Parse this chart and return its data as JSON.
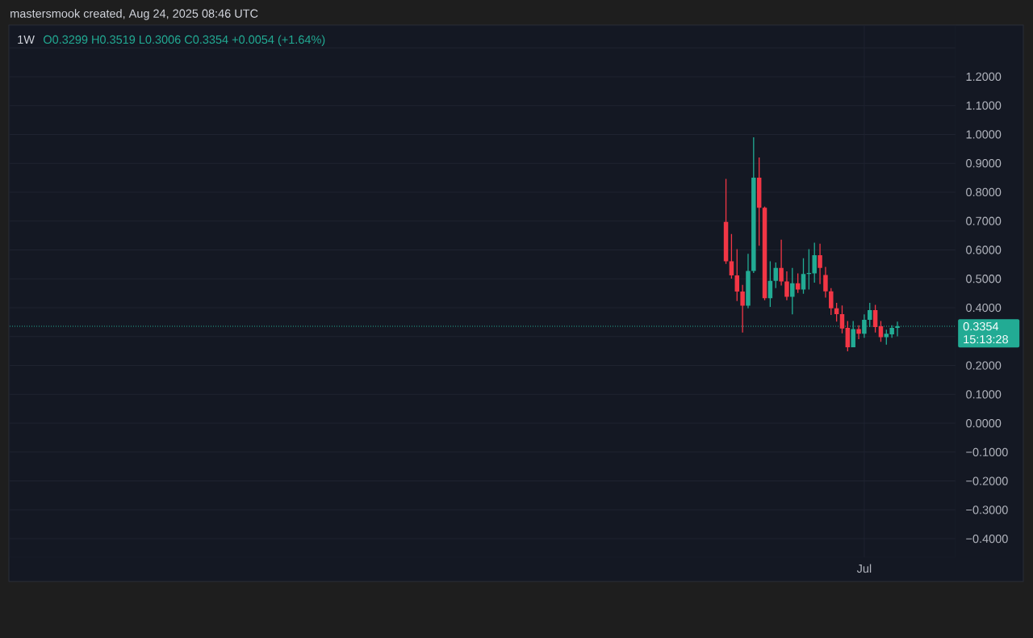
{
  "chart_data": {
    "type": "candlestick",
    "title": "1W",
    "subtitle": "O0.3299 H0.3519 L0.3006 C0.3354 +0.0054 (+1.64%)",
    "annotations": [
      "mastersmook created, Aug 24, 2025 08:46 UTC",
      "15:13:28"
    ],
    "categories": [
      null,
      null,
      null,
      null,
      null,
      null,
      null,
      null,
      null,
      null,
      null,
      null,
      null,
      null,
      null,
      null,
      null,
      null,
      null,
      null,
      null,
      null,
      null,
      null,
      null,
      null,
      null,
      null,
      null,
      null,
      null,
      null,
      null,
      null,
      null,
      null,
      null,
      null,
      null,
      null,
      null,
      null,
      null,
      null,
      null,
      null,
      null,
      null,
      null,
      null,
      null,
      null,
      null,
      null,
      null,
      null,
      null,
      null,
      null,
      null,
      null,
      null,
      null,
      null,
      null,
      null,
      null,
      null,
      null,
      null,
      null,
      null,
      null,
      null,
      null,
      null,
      null,
      null,
      null,
      null,
      null,
      null,
      null,
      null,
      null,
      null,
      null,
      null,
      null,
      null,
      null,
      null,
      null,
      null,
      null,
      null,
      null,
      null,
      null,
      null,
      null,
      null,
      null,
      null,
      null,
      null,
      null,
      null,
      null,
      null,
      null,
      null,
      null,
      null,
      null,
      null,
      null,
      null,
      null,
      null,
      null,
      null,
      null,
      null,
      null,
      null,
      null,
      null,
      null,
      null,
      null,
      null,
      null,
      null,
      null,
      null,
      null,
      null,
      null,
      null,
      null,
      null,
      null,
      null,
      null,
      null,
      null,
      null,
      null,
      null,
      null,
      null,
      null,
      null,
      "Jul",
      null,
      null,
      null,
      null,
      null,
      null,
      null,
      null,
      null,
      null,
      null,
      null,
      null,
      null,
      null,
      null
    ],
    "ohlc": [
      null,
      null,
      null,
      null,
      null,
      null,
      null,
      null,
      null,
      null,
      null,
      null,
      null,
      null,
      null,
      null,
      null,
      null,
      null,
      null,
      null,
      null,
      null,
      null,
      null,
      null,
      null,
      null,
      null,
      null,
      null,
      null,
      null,
      null,
      null,
      null,
      null,
      null,
      null,
      null,
      null,
      null,
      null,
      null,
      null,
      null,
      null,
      null,
      null,
      null,
      null,
      null,
      null,
      null,
      null,
      null,
      null,
      null,
      null,
      null,
      null,
      null,
      null,
      null,
      null,
      null,
      null,
      null,
      null,
      null,
      null,
      null,
      null,
      null,
      null,
      null,
      null,
      null,
      null,
      null,
      null,
      null,
      null,
      null,
      null,
      null,
      null,
      null,
      null,
      null,
      null,
      null,
      null,
      null,
      null,
      null,
      null,
      null,
      null,
      null,
      null,
      null,
      null,
      null,
      null,
      null,
      null,
      null,
      null,
      null,
      null,
      null,
      null,
      null,
      null,
      null,
      null,
      null,
      null,
      null,
      null,
      null,
      null,
      null,
      null,
      null,
      null,
      null,
      null,
      [
        0.697,
        0.846,
        0.552,
        0.561
      ],
      [
        0.561,
        0.655,
        0.501,
        0.512
      ],
      [
        0.512,
        0.603,
        0.423,
        0.456
      ],
      [
        0.456,
        0.479,
        0.314,
        0.407
      ],
      [
        0.407,
        0.587,
        0.398,
        0.527
      ],
      [
        0.527,
        0.99,
        0.52,
        0.85
      ],
      [
        0.85,
        0.92,
        0.615,
        0.746
      ],
      [
        0.746,
        0.75,
        0.426,
        0.433
      ],
      [
        0.433,
        0.561,
        0.403,
        0.493
      ],
      [
        0.493,
        0.557,
        0.468,
        0.538
      ],
      [
        0.538,
        0.636,
        0.477,
        0.491
      ],
      [
        0.491,
        0.526,
        0.426,
        0.438
      ],
      [
        0.438,
        0.538,
        0.377,
        0.485
      ],
      [
        0.485,
        0.519,
        0.451,
        0.463
      ],
      [
        0.463,
        0.571,
        0.448,
        0.517
      ],
      [
        0.517,
        0.603,
        0.463,
        0.52
      ],
      [
        0.519,
        0.625,
        0.487,
        0.582
      ],
      [
        0.582,
        0.622,
        0.482,
        0.538
      ],
      [
        0.513,
        0.541,
        0.435,
        0.457
      ],
      [
        0.457,
        0.468,
        0.375,
        0.398
      ],
      [
        0.398,
        0.417,
        0.352,
        0.378
      ],
      [
        0.378,
        0.408,
        0.311,
        0.328
      ],
      [
        0.33,
        0.354,
        0.249,
        0.263
      ],
      [
        0.263,
        0.354,
        0.263,
        0.326
      ],
      [
        0.326,
        0.339,
        0.291,
        0.31
      ],
      [
        0.31,
        0.377,
        0.296,
        0.358
      ],
      [
        0.358,
        0.417,
        0.333,
        0.392
      ],
      [
        0.392,
        0.41,
        0.314,
        0.333
      ],
      [
        0.336,
        0.354,
        0.282,
        0.298
      ],
      [
        0.298,
        0.324,
        0.272,
        0.31
      ],
      [
        0.308,
        0.339,
        0.296,
        0.33
      ],
      [
        0.3299,
        0.3519,
        0.3006,
        0.3354
      ],
      null,
      null,
      null,
      null,
      null,
      null,
      null,
      null,
      null,
      null
    ],
    "colors": [
      null,
      null,
      null,
      null,
      null,
      null,
      null,
      null,
      null,
      null,
      null,
      null,
      null,
      null,
      null,
      null,
      null,
      null,
      null,
      null,
      null,
      null,
      null,
      null,
      null,
      null,
      null,
      null,
      null,
      null,
      null,
      null,
      null,
      null,
      null,
      null,
      null,
      null,
      null,
      null,
      null,
      null,
      null,
      null,
      null,
      null,
      null,
      null,
      null,
      null,
      null,
      null,
      null,
      null,
      null,
      null,
      null,
      null,
      null,
      null,
      null,
      null,
      null,
      null,
      null,
      null,
      null,
      null,
      null,
      null,
      null,
      null,
      null,
      null,
      null,
      null,
      null,
      null,
      null,
      null,
      null,
      null,
      null,
      null,
      null,
      null,
      null,
      null,
      null,
      null,
      null,
      null,
      null,
      null,
      null,
      null,
      null,
      null,
      null,
      null,
      null,
      null,
      null,
      null,
      null,
      null,
      null,
      null,
      null,
      null,
      null,
      null,
      null,
      null,
      null,
      null,
      null,
      null,
      null,
      null,
      null,
      null,
      null,
      null,
      null,
      null,
      null,
      null,
      null,
      "#f23645",
      "#f23645",
      "#f23645",
      "#f23645",
      "#22ab94",
      "#22ab94",
      "#f23645",
      "#f23645",
      "#22ab94",
      "#22ab94",
      "#f23645",
      "#f23645",
      "#22ab94",
      "#f23645",
      "#22ab94",
      "#22ab94",
      "#22ab94",
      "#f23645",
      "#f23645",
      "#f23645",
      "#f23645",
      "#f23645",
      "#f23645",
      "#22ab94",
      "#f23645",
      "#22ab94",
      "#22ab94",
      "#f23645",
      "#f23645",
      "#22ab94",
      "#22ab94",
      "#22ab94",
      null,
      null,
      null,
      null,
      null,
      null,
      null,
      null,
      null,
      null
    ],
    "ylim": [
      -0.464,
      1.376
    ],
    "yticks": [
      {
        "value": -0.4,
        "label": "−0.4000"
      },
      {
        "value": -0.3,
        "label": "−0.3000"
      },
      {
        "value": -0.2,
        "label": "−0.2000"
      },
      {
        "value": -0.1,
        "label": "−0.1000"
      },
      {
        "value": 0.0,
        "label": "0.0000"
      },
      {
        "value": 0.1,
        "label": "0.1000"
      },
      {
        "value": 0.2,
        "label": "0.2000"
      },
      {
        "value": 0.3,
        "label": null
      },
      {
        "value": 0.4,
        "label": "0.4000"
      },
      {
        "value": 0.5,
        "label": "0.5000"
      },
      {
        "value": 0.6,
        "label": "0.6000"
      },
      {
        "value": 0.7,
        "label": "0.7000"
      },
      {
        "value": 0.8,
        "label": "0.8000"
      },
      {
        "value": 0.9,
        "label": "0.9000"
      },
      {
        "value": 1.0,
        "label": "1.0000"
      },
      {
        "value": 1.1,
        "label": "1.1000"
      },
      {
        "value": 1.2,
        "label": "1.2000"
      },
      {
        "value": 1.3,
        "label": null
      }
    ],
    "grid": true,
    "ref_lines": [
      {
        "axis": "y",
        "value": 0.3354,
        "label": "0.3354",
        "color": "#22ab94",
        "line_style": "dotted"
      }
    ]
  }
}
